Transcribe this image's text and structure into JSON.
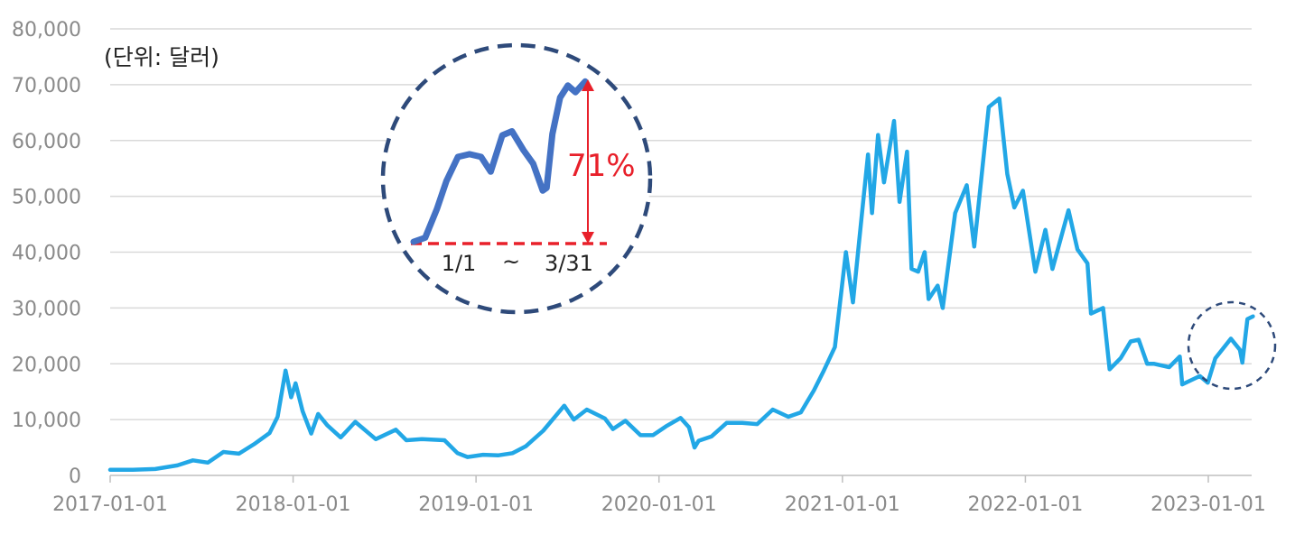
{
  "unit_label": "(단위: 달러)",
  "colors": {
    "series": "#22a7e6",
    "inset_series": "#4472c4",
    "circle": "#2e4a7a",
    "highlight": "#e8202a"
  },
  "chart_data": {
    "type": "line",
    "title": "",
    "xlabel": "",
    "ylabel": "",
    "ylim": [
      0,
      80000
    ],
    "yticks": [
      0,
      10000,
      20000,
      30000,
      40000,
      50000,
      60000,
      70000,
      80000
    ],
    "ytick_labels": [
      "0",
      "10,000",
      "20,000",
      "30,000",
      "40,000",
      "50,000",
      "60,000",
      "70,000",
      "80,000"
    ],
    "xlim": [
      "2017-01-01",
      "2023-04-15"
    ],
    "xticks": [
      "2017-01-01",
      "2018-01-01",
      "2019-01-01",
      "2020-01-01",
      "2021-01-01",
      "2022-01-01",
      "2023-01-01"
    ],
    "grid": true,
    "legend": "none",
    "series": [
      {
        "points": [
          [
            "2017-01-01",
            1000
          ],
          [
            "2017-02-15",
            1000
          ],
          [
            "2017-04-01",
            1150
          ],
          [
            "2017-05-15",
            1800
          ],
          [
            "2017-06-15",
            2700
          ],
          [
            "2017-07-15",
            2300
          ],
          [
            "2017-08-15",
            4200
          ],
          [
            "2017-09-15",
            3900
          ],
          [
            "2017-10-15",
            5600
          ],
          [
            "2017-11-15",
            7600
          ],
          [
            "2017-12-01",
            10500
          ],
          [
            "2017-12-17",
            18800
          ],
          [
            "2017-12-28",
            14000
          ],
          [
            "2018-01-06",
            16500
          ],
          [
            "2018-01-20",
            11500
          ],
          [
            "2018-02-06",
            7500
          ],
          [
            "2018-02-20",
            11000
          ],
          [
            "2018-03-10",
            9000
          ],
          [
            "2018-04-06",
            6800
          ],
          [
            "2018-05-05",
            9600
          ],
          [
            "2018-06-15",
            6500
          ],
          [
            "2018-07-25",
            8200
          ],
          [
            "2018-08-15",
            6300
          ],
          [
            "2018-09-15",
            6500
          ],
          [
            "2018-10-30",
            6300
          ],
          [
            "2018-11-25",
            4000
          ],
          [
            "2018-12-15",
            3300
          ],
          [
            "2019-01-15",
            3700
          ],
          [
            "2019-02-15",
            3600
          ],
          [
            "2019-03-15",
            4000
          ],
          [
            "2019-04-10",
            5200
          ],
          [
            "2019-05-15",
            8000
          ],
          [
            "2019-06-26",
            12500
          ],
          [
            "2019-07-15",
            10000
          ],
          [
            "2019-08-10",
            11800
          ],
          [
            "2019-09-15",
            10200
          ],
          [
            "2019-10-01",
            8300
          ],
          [
            "2019-10-26",
            9800
          ],
          [
            "2019-11-25",
            7200
          ],
          [
            "2019-12-20",
            7200
          ],
          [
            "2020-01-15",
            8800
          ],
          [
            "2020-02-13",
            10300
          ],
          [
            "2020-03-01",
            8600
          ],
          [
            "2020-03-12",
            5000
          ],
          [
            "2020-03-20",
            6200
          ],
          [
            "2020-04-15",
            7000
          ],
          [
            "2020-05-15",
            9400
          ],
          [
            "2020-06-15",
            9400
          ],
          [
            "2020-07-15",
            9200
          ],
          [
            "2020-08-15",
            11800
          ],
          [
            "2020-09-15",
            10500
          ],
          [
            "2020-10-10",
            11300
          ],
          [
            "2020-11-05",
            15200
          ],
          [
            "2020-11-25",
            18800
          ],
          [
            "2020-12-17",
            23000
          ],
          [
            "2021-01-08",
            40000
          ],
          [
            "2021-01-22",
            31000
          ],
          [
            "2021-02-08",
            46000
          ],
          [
            "2021-02-21",
            57500
          ],
          [
            "2021-03-01",
            47000
          ],
          [
            "2021-03-13",
            61000
          ],
          [
            "2021-03-25",
            52500
          ],
          [
            "2021-04-14",
            63500
          ],
          [
            "2021-04-25",
            49000
          ],
          [
            "2021-05-10",
            58000
          ],
          [
            "2021-05-19",
            37000
          ],
          [
            "2021-06-01",
            36500
          ],
          [
            "2021-06-14",
            40000
          ],
          [
            "2021-06-22",
            31600
          ],
          [
            "2021-07-10",
            34000
          ],
          [
            "2021-07-20",
            30000
          ],
          [
            "2021-08-14",
            47000
          ],
          [
            "2021-09-06",
            52000
          ],
          [
            "2021-09-21",
            41000
          ],
          [
            "2021-10-20",
            66000
          ],
          [
            "2021-11-10",
            67500
          ],
          [
            "2021-11-26",
            54000
          ],
          [
            "2021-12-10",
            48000
          ],
          [
            "2021-12-27",
            51000
          ],
          [
            "2022-01-21",
            36500
          ],
          [
            "2022-02-10",
            44000
          ],
          [
            "2022-02-24",
            37000
          ],
          [
            "2022-03-28",
            47500
          ],
          [
            "2022-04-15",
            40500
          ],
          [
            "2022-05-05",
            38000
          ],
          [
            "2022-05-12",
            29000
          ],
          [
            "2022-06-05",
            30000
          ],
          [
            "2022-06-18",
            19000
          ],
          [
            "2022-07-10",
            21000
          ],
          [
            "2022-07-30",
            24000
          ],
          [
            "2022-08-15",
            24300
          ],
          [
            "2022-09-01",
            20000
          ],
          [
            "2022-09-15",
            20000
          ],
          [
            "2022-10-15",
            19400
          ],
          [
            "2022-11-05",
            21300
          ],
          [
            "2022-11-10",
            16300
          ],
          [
            "2022-12-15",
            17800
          ],
          [
            "2022-12-31",
            16600
          ],
          [
            "2023-01-15",
            21000
          ],
          [
            "2023-02-15",
            24500
          ],
          [
            "2023-03-05",
            22500
          ],
          [
            "2023-03-10",
            20200
          ],
          [
            "2023-03-20",
            28000
          ],
          [
            "2023-03-31",
            28500
          ]
        ]
      }
    ]
  },
  "inset": {
    "label_start": "1/1",
    "label_tilde": "~",
    "label_end": "3/31",
    "change_label": "71%",
    "change_value": 71,
    "series": [
      [
        "2023-01-01",
        16600
      ],
      [
        "2023-01-07",
        16900
      ],
      [
        "2023-01-13",
        19000
      ],
      [
        "2023-01-18",
        21100
      ],
      [
        "2023-01-24",
        22900
      ],
      [
        "2023-01-30",
        23100
      ],
      [
        "2023-02-05",
        22900
      ],
      [
        "2023-02-10",
        21800
      ],
      [
        "2023-02-16",
        24500
      ],
      [
        "2023-02-21",
        24800
      ],
      [
        "2023-02-27",
        23400
      ],
      [
        "2023-03-04",
        22400
      ],
      [
        "2023-03-09",
        20400
      ],
      [
        "2023-03-11",
        20600
      ],
      [
        "2023-03-14",
        24600
      ],
      [
        "2023-03-18",
        27300
      ],
      [
        "2023-03-22",
        28200
      ],
      [
        "2023-03-26",
        27700
      ],
      [
        "2023-03-31",
        28500
      ]
    ]
  }
}
